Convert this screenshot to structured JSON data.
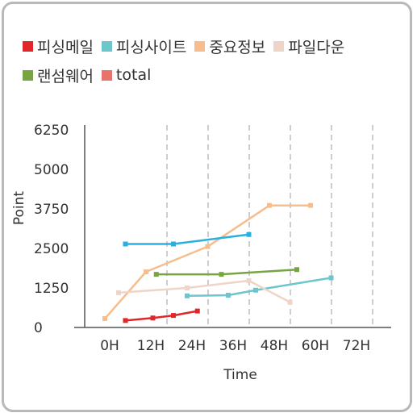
{
  "chart_data": {
    "type": "line",
    "xlabel": "Time",
    "ylabel": "Point",
    "x_ticks": [
      "0H",
      "12H",
      "24H",
      "36H",
      "48H",
      "60H",
      "72H"
    ],
    "y_ticks": [
      "0",
      "1250",
      "2500",
      "3750",
      "5000",
      "6250"
    ],
    "ylim": [
      0,
      6250
    ],
    "xlim_hours": [
      -6,
      78
    ],
    "grid": "vertical dashed",
    "legend_position": "top",
    "series": [
      {
        "name": "피싱메일",
        "color": "#e0262a",
        "points": [
          [
            6,
            220
          ],
          [
            14,
            300
          ],
          [
            20,
            380
          ],
          [
            27,
            520
          ]
        ]
      },
      {
        "name": "피싱사이트",
        "color": "#6cc6cc",
        "points": [
          [
            24,
            1000
          ],
          [
            36,
            1020
          ],
          [
            44,
            1180
          ],
          [
            66,
            1570
          ]
        ]
      },
      {
        "name": "중요정보",
        "color": "#f7bd8c",
        "points": [
          [
            0,
            280
          ],
          [
            12,
            1760
          ],
          [
            30,
            2560
          ],
          [
            48,
            3860
          ],
          [
            60,
            3860
          ]
        ]
      },
      {
        "name": "파일다운",
        "color": "#eed5c8",
        "points": [
          [
            4,
            1100
          ],
          [
            24,
            1250
          ],
          [
            42,
            1480
          ],
          [
            54,
            800
          ]
        ]
      },
      {
        "name": "랜섬웨어",
        "color": "#78a542",
        "points": [
          [
            15,
            1680
          ],
          [
            34,
            1680
          ],
          [
            56,
            1830
          ]
        ]
      },
      {
        "name": "total",
        "color": "#e8736c",
        "points": []
      },
      {
        "name": "",
        "color": "#29b0e0",
        "points": [
          [
            6,
            2640
          ],
          [
            20,
            2640
          ],
          [
            42,
            2940
          ]
        ]
      }
    ]
  }
}
